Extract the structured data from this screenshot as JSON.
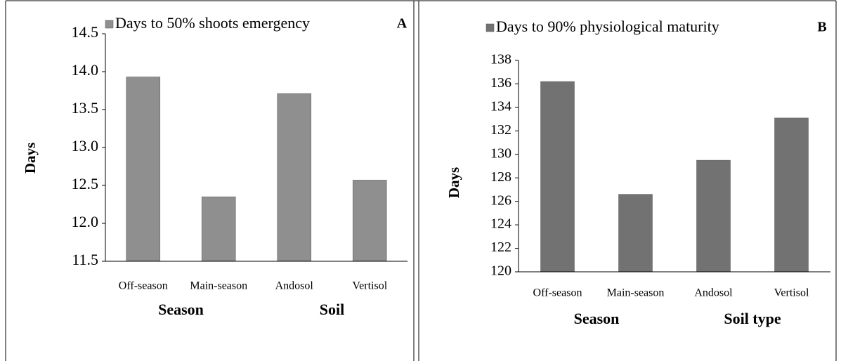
{
  "chart_data": [
    {
      "type": "bar",
      "legend": "Days to 50% shoots emergency",
      "panel_label": "A",
      "y_label": "Days",
      "categories": [
        "Off-season",
        "Main-season",
        "Andosol",
        "Vertisol"
      ],
      "group_labels": [
        "Season",
        "Soil"
      ],
      "values": [
        13.93,
        12.35,
        13.71,
        12.57
      ],
      "color": "#8f8f8f",
      "ylim": [
        11.5,
        14.5
      ],
      "yticks": [
        11.5,
        {
          "value": 12,
          "label": "12.0"
        },
        12.5,
        {
          "value": 13,
          "label": "13.0"
        },
        13.5,
        {
          "value": 14,
          "label": "14.0"
        },
        14.5
      ]
    },
    {
      "type": "bar",
      "legend": "Days to 90% physiological maturity",
      "panel_label": "B",
      "y_label": "Days",
      "categories": [
        "Off-season",
        "Main-season",
        "Andosol",
        "Vertisol"
      ],
      "group_labels": [
        "Season",
        "Soil type"
      ],
      "values": [
        136.2,
        126.6,
        129.5,
        133.1
      ],
      "color": "#727272",
      "ylim": [
        120,
        138
      ],
      "yticks": [
        120,
        122,
        124,
        126,
        128,
        130,
        132,
        134,
        136,
        138
      ]
    }
  ]
}
